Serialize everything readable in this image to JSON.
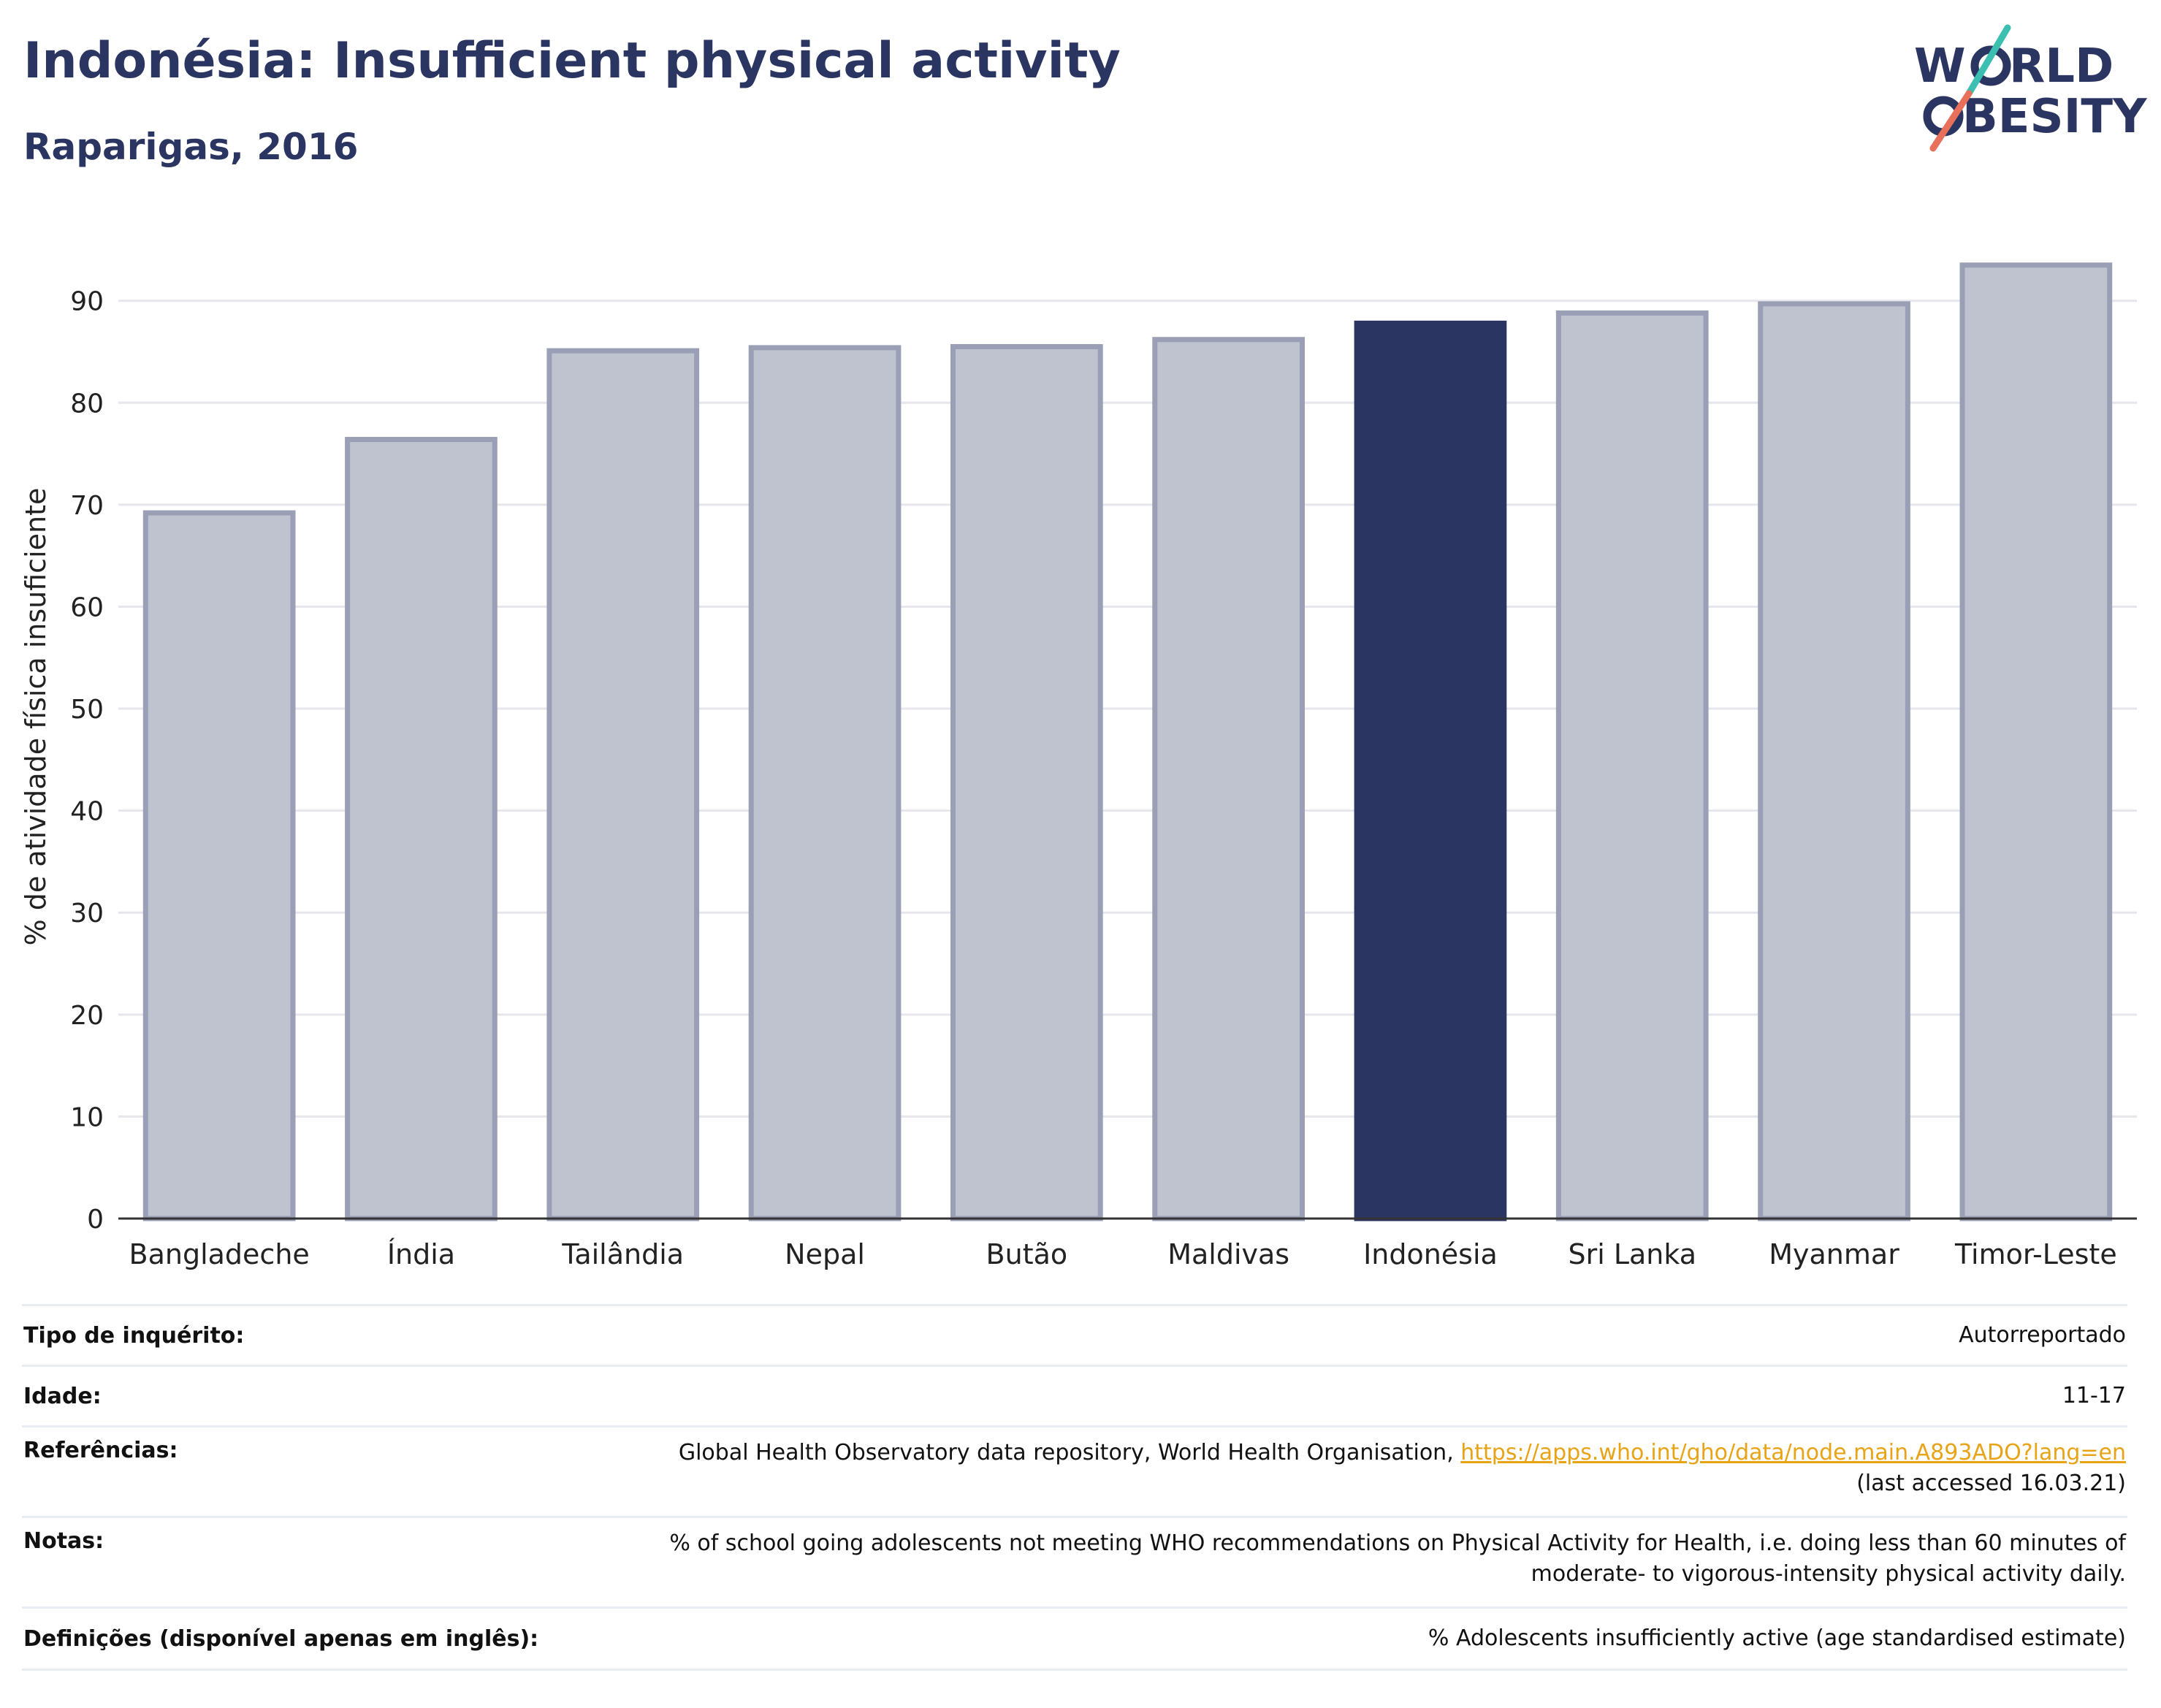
{
  "header": {
    "title": "Indonésia: Insufficient physical activity",
    "subtitle": "Raparigas, 2016"
  },
  "logo": {
    "line1": "W RLD",
    "line2": "BESITY",
    "colors": {
      "text": "#2b3561",
      "teal": "#3bbfb0",
      "coral": "#e8705a"
    }
  },
  "chart_data": {
    "type": "bar",
    "categories": [
      "Bangladeche",
      "Índia",
      "Tailândia",
      "Nepal",
      "Butão",
      "Maldivas",
      "Indonésia",
      "Sri Lanka",
      "Myanmar",
      "Timor-Leste"
    ],
    "values": [
      69.2,
      76.4,
      85.1,
      85.4,
      85.5,
      86.2,
      87.8,
      88.8,
      89.7,
      93.5
    ],
    "highlight": "Indonésia",
    "ylabel": "% de atividade física insuficiente",
    "xlabel": "",
    "ylim": [
      0,
      97
    ],
    "yticks": [
      0,
      10,
      20,
      30,
      40,
      50,
      60,
      70,
      80,
      90
    ],
    "grid": true,
    "colors": {
      "bar": "#bfc2cf",
      "bar_edge": "#9a9fb6",
      "highlight": "#2b3561"
    }
  },
  "meta": {
    "survey_label": "Tipo de inquérito:",
    "survey_value": "Autorreportado",
    "age_label": "Idade:",
    "age_value": "11-17",
    "refs_label": "Referências:",
    "refs_text": "Global Health Observatory data repository, World Health Organisation, ",
    "refs_link": "https://apps.who.int/gho/data/node.main.A893ADO?lang=en",
    "refs_accessed": "(last accessed 16.03.21)",
    "notes_label": "Notas:",
    "notes_line1": "% of school going adolescents not meeting WHO recommendations on Physical Activity for Health, i.e. doing less than 60 minutes of",
    "notes_line2": "moderate- to vigorous-intensity physical activity daily.",
    "defs_label": "Definições (disponível apenas em inglês):",
    "defs_value": "% Adolescents insufficiently active (age standardised estimate)"
  }
}
